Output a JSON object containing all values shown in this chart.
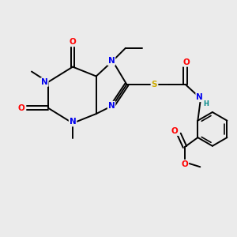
{
  "background_color": "#ebebeb",
  "fig_size": [
    3.0,
    3.0
  ],
  "dpi": 100,
  "atom_colors": {
    "N": "#0000ee",
    "O": "#ff0000",
    "S": "#ccaa00",
    "C": "#000000",
    "H": "#008888"
  },
  "bond_color": "#000000",
  "bond_width": 1.4,
  "font_size_atom": 7.5,
  "font_size_small": 6.0
}
